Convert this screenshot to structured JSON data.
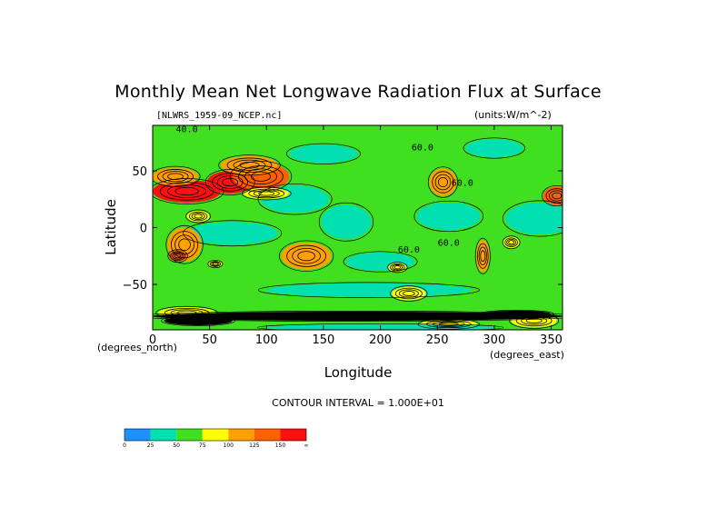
{
  "chart_data": {
    "type": "heatmap",
    "title": "Monthly Mean Net Longwave Radiation Flux at Surface",
    "file_label": "[NLWRS_1959-09_NCEP.nc]",
    "units_label": "(units:W/m^-2)",
    "xlabel": "Longitude",
    "ylabel": "Latitude",
    "x_unit_label": "(degrees_east)",
    "y_unit_label": "(degrees_north)",
    "xlim": [
      0,
      360
    ],
    "ylim": [
      -90,
      90
    ],
    "x_ticks": [
      "0",
      "50",
      "100",
      "150",
      "200",
      "250",
      "300",
      "350"
    ],
    "x_tick_values": [
      0,
      50,
      100,
      150,
      200,
      250,
      300,
      350
    ],
    "y_ticks": [
      "50",
      "0",
      "-50"
    ],
    "y_tick_values": [
      50,
      0,
      -50
    ],
    "contour_interval_label": "CONTOUR INTERVAL = 1.000E+01",
    "contour_labels": [
      {
        "text": "40.0",
        "lon": 30,
        "lat": 84
      },
      {
        "text": "60.0",
        "lon": 237,
        "lat": 68
      },
      {
        "text": "60.0",
        "lon": 272,
        "lat": 37
      },
      {
        "text": "60.0",
        "lon": 260,
        "lat": -16
      },
      {
        "text": "60.0",
        "lon": 225,
        "lat": -22
      }
    ],
    "colorbar": {
      "labels": [
        "0",
        "25",
        "50",
        "75",
        "100",
        "125",
        "150",
        "∞"
      ],
      "colors": [
        "#1e90ff",
        "#00e0b0",
        "#40e020",
        "#ffff00",
        "#ffa000",
        "#ff6000",
        "#ff1010"
      ]
    },
    "field_regions": [
      {
        "lon": 180,
        "lat": 0,
        "rlon": 220,
        "rlat": 95,
        "level": 2
      },
      {
        "lon": 125,
        "lat": 25,
        "rlon": 30,
        "rlat": 12,
        "level": 1
      },
      {
        "lon": 170,
        "lat": 5,
        "rlon": 22,
        "rlat": 15,
        "level": 1
      },
      {
        "lon": 340,
        "lat": 8,
        "rlon": 30,
        "rlat": 14,
        "level": 1
      },
      {
        "lon": 260,
        "lat": 10,
        "rlon": 28,
        "rlat": 12,
        "level": 1
      },
      {
        "lon": 70,
        "lat": -5,
        "rlon": 40,
        "rlat": 10,
        "level": 1
      },
      {
        "lon": 190,
        "lat": -55,
        "rlon": 90,
        "rlat": 6,
        "level": 1
      },
      {
        "lon": 300,
        "lat": 70,
        "rlon": 25,
        "rlat": 8,
        "level": 1
      },
      {
        "lon": 150,
        "lat": 65,
        "rlon": 30,
        "rlat": 8,
        "level": 1
      },
      {
        "lon": 200,
        "lat": -30,
        "rlon": 30,
        "rlat": 8,
        "level": 1
      },
      {
        "lon": 30,
        "lat": 32,
        "rlon": 30,
        "rlat": 10,
        "level": 6
      },
      {
        "lon": 68,
        "lat": 40,
        "rlon": 20,
        "rlat": 10,
        "level": 6
      },
      {
        "lon": 95,
        "lat": 45,
        "rlon": 25,
        "rlat": 12,
        "level": 5
      },
      {
        "lon": 20,
        "lat": 45,
        "rlon": 20,
        "rlat": 8,
        "level": 4
      },
      {
        "lon": 85,
        "lat": 55,
        "rlon": 25,
        "rlat": 8,
        "level": 4
      },
      {
        "lon": 355,
        "lat": 28,
        "rlon": 12,
        "rlat": 8,
        "level": 5
      },
      {
        "lon": 255,
        "lat": 40,
        "rlon": 12,
        "rlat": 12,
        "level": 4
      },
      {
        "lon": 28,
        "lat": -15,
        "rlon": 15,
        "rlat": 15,
        "level": 4
      },
      {
        "lon": 22,
        "lat": -25,
        "rlon": 8,
        "rlat": 5,
        "level": 5
      },
      {
        "lon": 135,
        "lat": -25,
        "rlon": 22,
        "rlat": 12,
        "level": 4
      },
      {
        "lon": 290,
        "lat": -25,
        "rlon": 6,
        "rlat": 14,
        "level": 4
      },
      {
        "lon": 315,
        "lat": -13,
        "rlon": 7,
        "rlat": 5,
        "level": 3
      },
      {
        "lon": 225,
        "lat": -58,
        "rlon": 15,
        "rlat": 6,
        "level": 3
      },
      {
        "lon": 215,
        "lat": -35,
        "rlon": 8,
        "rlat": 4,
        "level": 3
      },
      {
        "lon": 55,
        "lat": -32,
        "rlon": 6,
        "rlat": 3,
        "level": 3
      },
      {
        "lon": 30,
        "lat": -75,
        "rlon": 25,
        "rlat": 5,
        "level": 3
      },
      {
        "lon": 335,
        "lat": -82,
        "rlon": 20,
        "rlat": 6,
        "level": 3
      },
      {
        "lon": 260,
        "lat": -85,
        "rlon": 25,
        "rlat": 4,
        "level": 3
      },
      {
        "lon": 40,
        "lat": 10,
        "rlon": 10,
        "rlat": 5,
        "level": 3
      },
      {
        "lon": 100,
        "lat": 30,
        "rlon": 20,
        "rlat": 5,
        "level": 3
      },
      {
        "lon": 180,
        "lat": -78,
        "rlon": 180,
        "rlat": 4,
        "level": 0
      },
      {
        "lon": 40,
        "lat": -82,
        "rlon": 30,
        "rlat": 4,
        "level": 0
      },
      {
        "lon": 320,
        "lat": -76,
        "rlon": 30,
        "rlat": 3,
        "level": 0
      },
      {
        "lon": 200,
        "lat": -88,
        "rlon": 100,
        "rlat": 3,
        "level": 1
      }
    ]
  }
}
